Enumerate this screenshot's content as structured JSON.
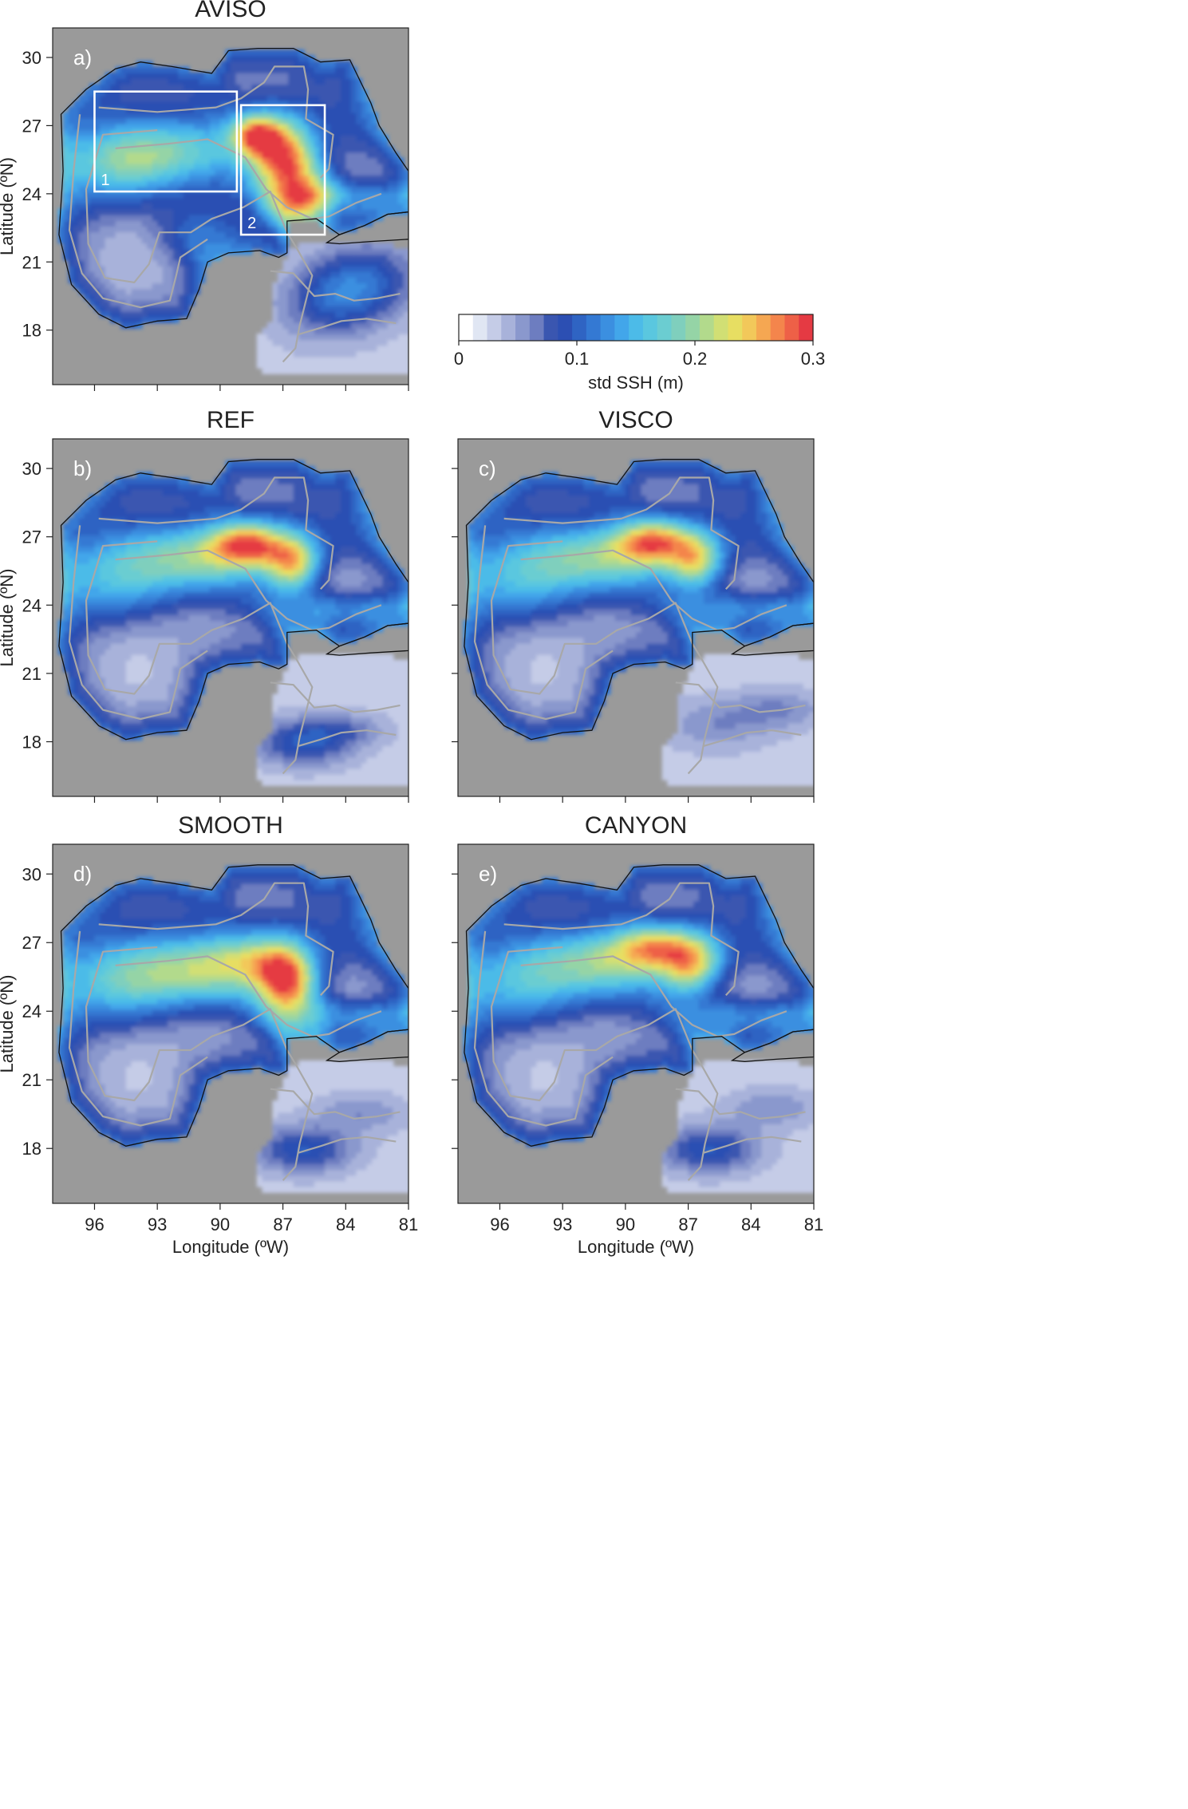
{
  "figure": {
    "panels": [
      {
        "id": "a",
        "label": "a)",
        "title": "AVISO"
      },
      {
        "id": "b",
        "label": "b)",
        "title": "REF"
      },
      {
        "id": "c",
        "label": "c)",
        "title": "VISCO"
      },
      {
        "id": "d",
        "label": "d)",
        "title": "SMOOTH"
      },
      {
        "id": "e",
        "label": "e)",
        "title": "CANYON"
      }
    ],
    "boxes": [
      {
        "label": "1",
        "lon": [
          96,
          89.2
        ],
        "lat": [
          28.5,
          24.1
        ]
      },
      {
        "label": "2",
        "lon": [
          89.0,
          85.0
        ],
        "lat": [
          27.9,
          22.2
        ]
      }
    ]
  },
  "colorbar": {
    "label": "std SSH (m)",
    "ticks": [
      "0",
      "0.1",
      "0.2",
      "0.3"
    ],
    "range": [
      0,
      0.3
    ],
    "colors": [
      "#ffffff",
      "#e0e6f3",
      "#c5cce7",
      "#a8b2da",
      "#8a98cd",
      "#6d7dc0",
      "#3a56b0",
      "#2c4fb3",
      "#2f64c3",
      "#3479d3",
      "#3b8fe0",
      "#42a6ea",
      "#4cbbe8",
      "#5ac7df",
      "#6bcdd1",
      "#7fcfbd",
      "#95d4a6",
      "#b2da8c",
      "#d1df74",
      "#e7de62",
      "#f2c85a",
      "#f5a752",
      "#f4854c",
      "#ee6047",
      "#e53a43"
    ]
  },
  "chart_data": [
    {
      "type": "heatmap",
      "panel": "a",
      "title": "AVISO",
      "xlabel": "",
      "ylabel": "Latitude (ºN)",
      "xticks": [],
      "yticks": [
        "30",
        "27",
        "24",
        "21",
        "18"
      ],
      "xlim": [
        98,
        81
      ],
      "ylim": [
        15.6,
        31.3
      ],
      "maxima": [
        {
          "lon": 86.6,
          "lat": 25.4,
          "value": 0.3
        },
        {
          "lon": 88.2,
          "lat": 26.7,
          "value": 0.26
        }
      ]
    },
    {
      "type": "heatmap",
      "panel": "b",
      "title": "REF",
      "xlabel": "",
      "ylabel": "Latitude (ºN)",
      "xticks": [],
      "yticks": [
        "30",
        "27",
        "24",
        "21",
        "18"
      ],
      "xlim": [
        98,
        81
      ],
      "ylim": [
        15.6,
        31.3
      ],
      "maxima": [
        {
          "lon": 88.5,
          "lat": 26.7,
          "value": 0.27
        },
        {
          "lon": 86.4,
          "lat": 25.8,
          "value": 0.26
        }
      ]
    },
    {
      "type": "heatmap",
      "panel": "c",
      "title": "VISCO",
      "xlabel": "",
      "ylabel": "",
      "xticks": [],
      "yticks": [],
      "xlim": [
        98,
        81
      ],
      "ylim": [
        15.6,
        31.3
      ],
      "maxima": [
        {
          "lon": 88.6,
          "lat": 26.8,
          "value": 0.26
        },
        {
          "lon": 86.6,
          "lat": 25.9,
          "value": 0.24
        }
      ]
    },
    {
      "type": "heatmap",
      "panel": "d",
      "title": "SMOOTH",
      "xlabel": "Longitude (ºW)",
      "ylabel": "Latitude (ºN)",
      "xticks": [
        "96",
        "93",
        "90",
        "87",
        "84",
        "81"
      ],
      "yticks": [
        "30",
        "27",
        "24",
        "21",
        "18"
      ],
      "xlim": [
        98,
        81
      ],
      "ylim": [
        15.6,
        31.3
      ],
      "maxima": [
        {
          "lon": 86.8,
          "lat": 25.3,
          "value": 0.3
        }
      ]
    },
    {
      "type": "heatmap",
      "panel": "e",
      "title": "CANYON",
      "xlabel": "Longitude (ºW)",
      "ylabel": "",
      "xticks": [
        "96",
        "93",
        "90",
        "87",
        "84",
        "81"
      ],
      "yticks": [],
      "xlim": [
        98,
        81
      ],
      "ylim": [
        15.6,
        31.3
      ],
      "maxima": [
        {
          "lon": 88.4,
          "lat": 26.8,
          "value": 0.25
        },
        {
          "lon": 86.8,
          "lat": 25.9,
          "value": 0.23
        }
      ]
    }
  ]
}
